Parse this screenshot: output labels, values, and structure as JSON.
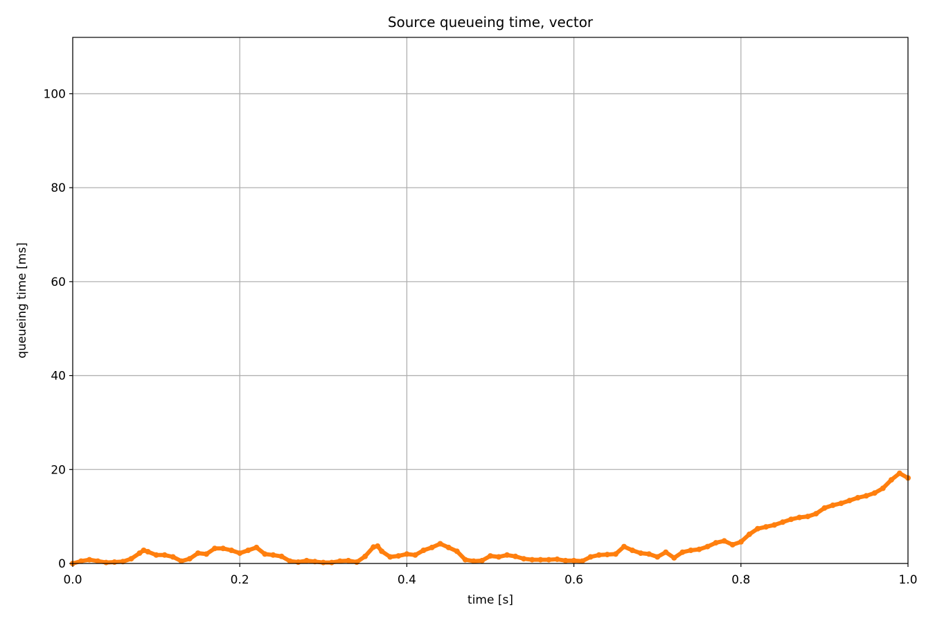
{
  "chart_data": {
    "type": "line",
    "title": "Source queueing time, vector",
    "xlabel": "time [s]",
    "ylabel": "queueing time [ms]",
    "xlim": [
      0.0,
      1.0
    ],
    "ylim": [
      0,
      112
    ],
    "xticks": [
      0.0,
      0.2,
      0.4,
      0.6,
      0.8,
      1.0
    ],
    "xtick_labels": [
      "0.0",
      "0.2",
      "0.4",
      "0.6",
      "0.8",
      "1.0"
    ],
    "yticks": [
      0,
      20,
      40,
      60,
      80,
      100
    ],
    "ytick_labels": [
      "0",
      "20",
      "40",
      "60",
      "80",
      "100"
    ],
    "grid": true,
    "series": [
      {
        "color": "#ff7f0e",
        "x": [
          0.0,
          0.01,
          0.02,
          0.03,
          0.04,
          0.05,
          0.06,
          0.07,
          0.08,
          0.085,
          0.09,
          0.1,
          0.11,
          0.12,
          0.13,
          0.14,
          0.15,
          0.16,
          0.17,
          0.18,
          0.19,
          0.2,
          0.21,
          0.22,
          0.23,
          0.24,
          0.25,
          0.26,
          0.27,
          0.28,
          0.29,
          0.3,
          0.31,
          0.32,
          0.33,
          0.34,
          0.35,
          0.36,
          0.365,
          0.37,
          0.38,
          0.39,
          0.4,
          0.41,
          0.42,
          0.43,
          0.44,
          0.45,
          0.46,
          0.47,
          0.48,
          0.49,
          0.5,
          0.51,
          0.52,
          0.53,
          0.54,
          0.55,
          0.56,
          0.57,
          0.58,
          0.59,
          0.6,
          0.61,
          0.62,
          0.63,
          0.64,
          0.65,
          0.66,
          0.67,
          0.68,
          0.69,
          0.7,
          0.71,
          0.72,
          0.73,
          0.74,
          0.75,
          0.76,
          0.77,
          0.78,
          0.79,
          0.8,
          0.81,
          0.82,
          0.83,
          0.84,
          0.85,
          0.86,
          0.87,
          0.88,
          0.89,
          0.9,
          0.91,
          0.92,
          0.93,
          0.94,
          0.95,
          0.96,
          0.97,
          0.98,
          0.99,
          1.0
        ],
        "values": [
          0.0,
          0.5,
          0.8,
          0.5,
          0.2,
          0.3,
          0.4,
          1.0,
          2.2,
          2.8,
          2.5,
          1.8,
          1.8,
          1.4,
          0.5,
          1.0,
          2.2,
          2.0,
          3.2,
          3.2,
          2.8,
          2.2,
          2.8,
          3.4,
          2.0,
          1.8,
          1.5,
          0.5,
          0.3,
          0.6,
          0.4,
          0.2,
          0.2,
          0.5,
          0.6,
          0.3,
          1.5,
          3.5,
          3.7,
          2.6,
          1.4,
          1.6,
          2.0,
          1.8,
          2.8,
          3.4,
          4.2,
          3.4,
          2.6,
          0.8,
          0.5,
          0.6,
          1.6,
          1.4,
          1.8,
          1.5,
          1.0,
          0.8,
          0.8,
          0.8,
          0.9,
          0.6,
          0.6,
          0.5,
          1.4,
          1.8,
          1.9,
          2.0,
          3.6,
          2.8,
          2.2,
          2.0,
          1.4,
          2.4,
          1.2,
          2.4,
          2.8,
          3.0,
          3.6,
          4.4,
          4.8,
          4.0,
          4.6,
          6.2,
          7.4,
          7.8,
          8.2,
          8.8,
          9.4,
          9.8,
          10.0,
          10.6,
          11.8,
          12.4,
          12.8,
          13.4,
          14.0,
          14.4,
          15.0,
          16.0,
          17.8,
          19.2,
          18.2
        ]
      }
    ]
  }
}
